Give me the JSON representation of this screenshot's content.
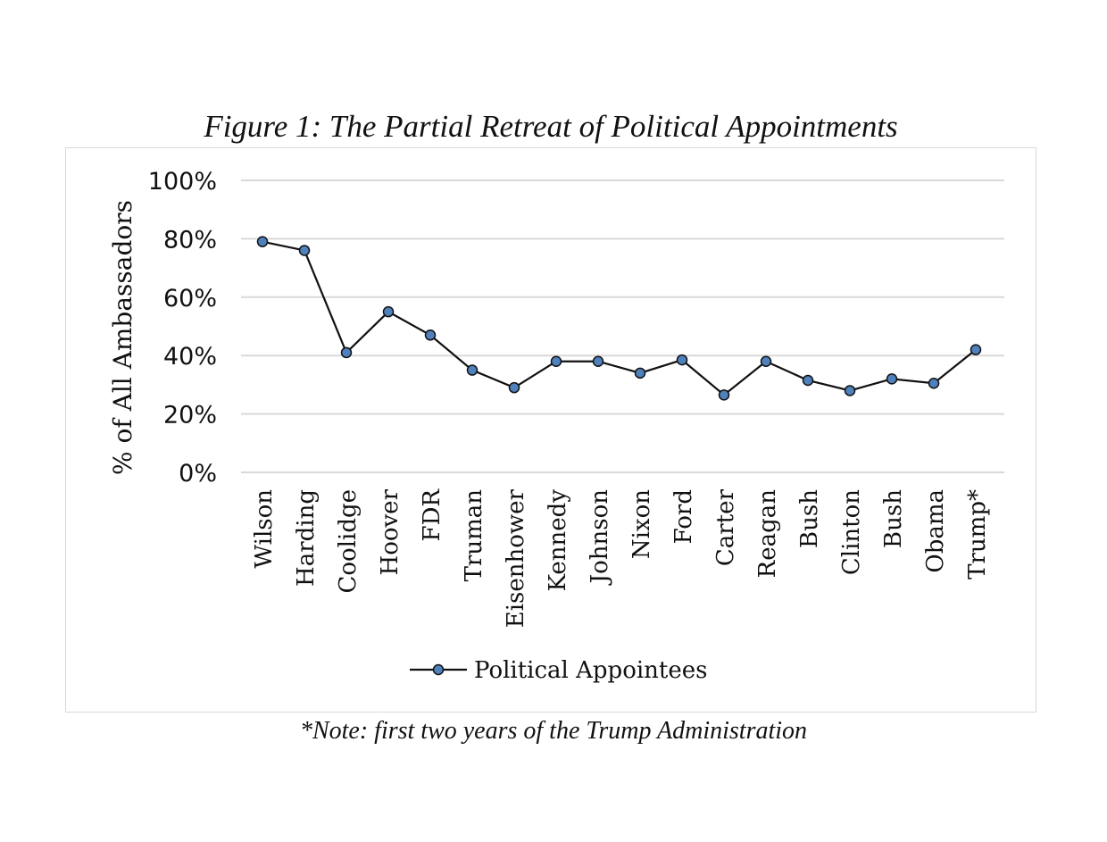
{
  "title": "Figure 1: The Partial Retreat of Political Appointments",
  "note": "*Note: first two years of the Trump Administration",
  "chart_data": {
    "type": "line",
    "title": "",
    "ylabel": "% of All Ambassadors",
    "xlabel": "",
    "ylim": [
      0,
      100
    ],
    "yticks": [
      "0%",
      "20%",
      "40%",
      "60%",
      "80%",
      "100%"
    ],
    "grid": true,
    "legend_position": "bottom",
    "categories": [
      "Wilson",
      "Harding",
      "Coolidge",
      "Hoover",
      "FDR",
      "Truman",
      "Eisenhower",
      "Kennedy",
      "Johnson",
      "Nixon",
      "Ford",
      "Carter",
      "Reagan",
      "Bush",
      "Clinton",
      "Bush",
      "Obama",
      "Trump*"
    ],
    "series": [
      {
        "name": "Political Appointees",
        "color": "#4f81bd",
        "values": [
          79,
          76,
          41,
          55,
          47,
          35,
          29,
          38,
          38,
          34,
          38.5,
          26.5,
          38,
          31.5,
          28,
          32,
          30.5,
          42
        ]
      }
    ]
  }
}
